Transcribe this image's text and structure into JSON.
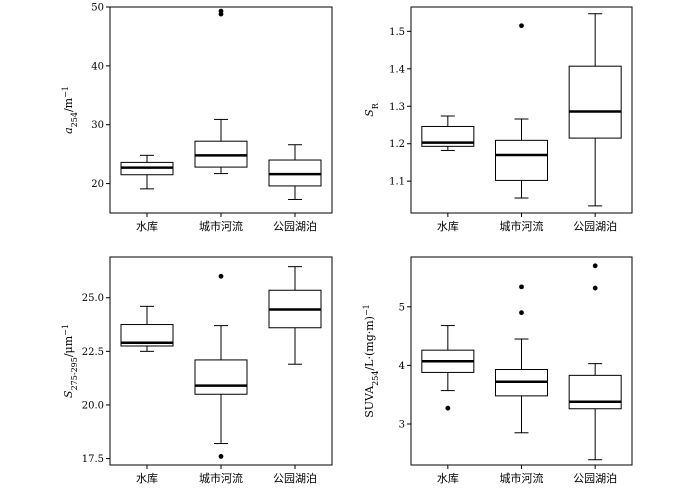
{
  "chart_data": [
    {
      "type": "box",
      "ylabel": "a254/m⁻¹",
      "ylabel_parts": [
        [
          "a",
          "italic"
        ],
        [
          "254",
          "sub"
        ],
        [
          "/m",
          "normal"
        ],
        [
          "−1",
          "sup"
        ]
      ],
      "ylim": [
        15,
        50
      ],
      "yticks": [
        20,
        30,
        40,
        50
      ],
      "yticklabels": [
        "20",
        "30",
        "40",
        "50"
      ],
      "categories": [
        "水库",
        "城市河流",
        "公园湖泊"
      ],
      "boxes": [
        {
          "min": 19.1,
          "q1": 21.5,
          "median": 22.7,
          "q3": 23.6,
          "max": 24.8,
          "outliers": []
        },
        {
          "min": 21.7,
          "q1": 22.8,
          "median": 24.8,
          "q3": 27.2,
          "max": 30.9,
          "outliers": [
            48.8,
            49.3
          ]
        },
        {
          "min": 17.3,
          "q1": 19.6,
          "median": 21.6,
          "q3": 24.0,
          "max": 26.6,
          "outliers": []
        }
      ]
    },
    {
      "type": "box",
      "ylabel": "SR",
      "ylabel_parts": [
        [
          "S",
          "italic"
        ],
        [
          "R",
          "sub"
        ]
      ],
      "ylim": [
        1.015,
        1.565
      ],
      "yticks": [
        1.1,
        1.2,
        1.3,
        1.4,
        1.5
      ],
      "yticklabels": [
        "1.1",
        "1.2",
        "1.3",
        "1.4",
        "1.5"
      ],
      "categories": [
        "水库",
        "城市河流",
        "公园湖泊"
      ],
      "boxes": [
        {
          "min": 1.182,
          "q1": 1.193,
          "median": 1.203,
          "q3": 1.246,
          "max": 1.274,
          "outliers": []
        },
        {
          "min": 1.055,
          "q1": 1.102,
          "median": 1.17,
          "q3": 1.209,
          "max": 1.266,
          "outliers": [
            1.515
          ]
        },
        {
          "min": 1.034,
          "q1": 1.215,
          "median": 1.286,
          "q3": 1.407,
          "max": 1.547,
          "outliers": []
        }
      ]
    },
    {
      "type": "box",
      "ylabel": "S275-295/μm⁻¹",
      "ylabel_parts": [
        [
          "S",
          "italic"
        ],
        [
          "275-295",
          "sub"
        ],
        [
          "/μm",
          "normal"
        ],
        [
          "−1",
          "sup"
        ]
      ],
      "ylim": [
        17.2,
        26.9
      ],
      "yticks": [
        17.5,
        20.0,
        22.5,
        25.0
      ],
      "yticklabels": [
        "17.5",
        "20.0",
        "22.5",
        "25.0"
      ],
      "categories": [
        "水库",
        "城市河流",
        "公园湖泊"
      ],
      "boxes": [
        {
          "min": 22.5,
          "q1": 22.75,
          "median": 22.9,
          "q3": 23.75,
          "max": 24.6,
          "outliers": []
        },
        {
          "min": 18.2,
          "q1": 20.5,
          "median": 20.9,
          "q3": 22.1,
          "max": 23.7,
          "outliers": [
            26.0,
            17.6
          ]
        },
        {
          "min": 21.9,
          "q1": 23.6,
          "median": 24.45,
          "q3": 25.35,
          "max": 26.45,
          "outliers": []
        }
      ]
    },
    {
      "type": "box",
      "ylabel": "SUVA254/L·(mg·m)⁻¹",
      "ylabel_parts": [
        [
          "SUVA",
          "normal"
        ],
        [
          "254",
          "sub"
        ],
        [
          "/L·(mg·m)",
          "normal"
        ],
        [
          "−1",
          "sup"
        ]
      ],
      "ylim": [
        2.3,
        5.85
      ],
      "yticks": [
        3,
        4,
        5
      ],
      "yticklabels": [
        "3",
        "4",
        "5"
      ],
      "categories": [
        "水库",
        "城市河流",
        "公园湖泊"
      ],
      "boxes": [
        {
          "min": 3.57,
          "q1": 3.88,
          "median": 4.07,
          "q3": 4.26,
          "max": 4.68,
          "outliers": [
            3.27
          ]
        },
        {
          "min": 2.85,
          "q1": 3.48,
          "median": 3.72,
          "q3": 3.93,
          "max": 4.45,
          "outliers": [
            5.34,
            4.9
          ]
        },
        {
          "min": 2.39,
          "q1": 3.26,
          "median": 3.38,
          "q3": 3.83,
          "max": 4.03,
          "outliers": [
            5.7,
            5.32
          ]
        }
      ]
    }
  ]
}
